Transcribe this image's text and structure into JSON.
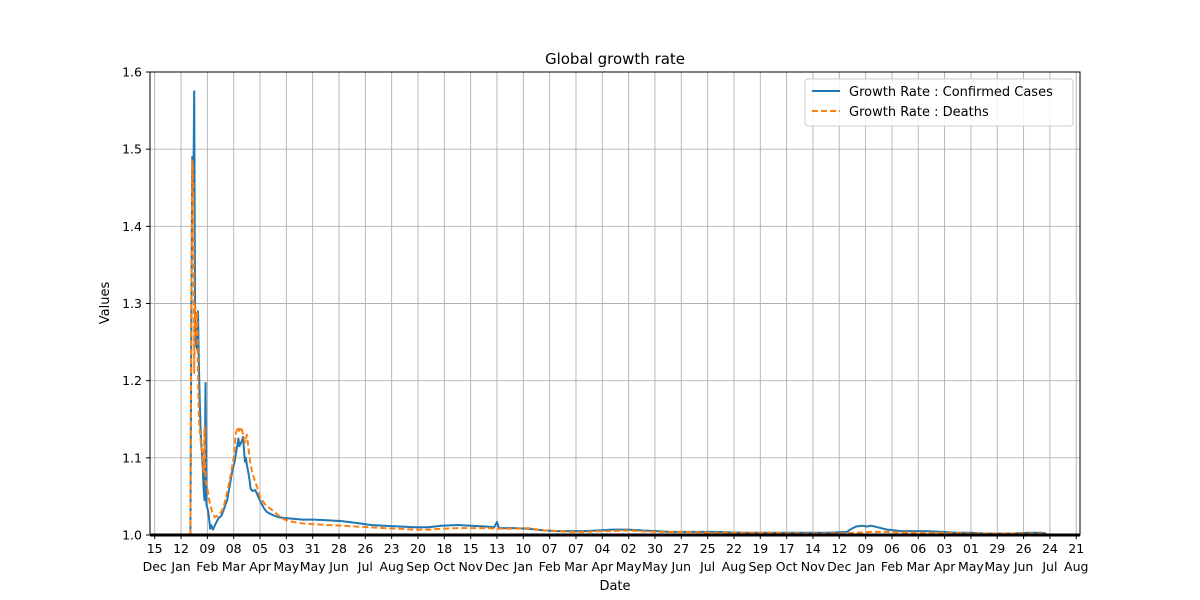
{
  "chart_data": {
    "type": "line",
    "title": "Global growth rate",
    "xlabel": "Date",
    "ylabel": "Values",
    "ylim": [
      1.0,
      1.6
    ],
    "xlim": [
      "2019-12-10",
      "2022-08-25"
    ],
    "grid": true,
    "legend_position": "top-right",
    "yticks": [
      {
        "value": 1.0,
        "label": "1.0"
      },
      {
        "value": 1.1,
        "label": "1.1"
      },
      {
        "value": 1.2,
        "label": "1.2"
      },
      {
        "value": 1.3,
        "label": "1.3"
      },
      {
        "value": 1.4,
        "label": "1.4"
      },
      {
        "value": 1.5,
        "label": "1.5"
      },
      {
        "value": 1.6,
        "label": "1.6"
      }
    ],
    "xticks": [
      {
        "date": "2019-12-15",
        "day": "15",
        "month": "Dec"
      },
      {
        "date": "2020-01-12",
        "day": "12",
        "month": "Jan"
      },
      {
        "date": "2020-02-09",
        "day": "09",
        "month": "Feb"
      },
      {
        "date": "2020-03-08",
        "day": "08",
        "month": "Mar"
      },
      {
        "date": "2020-04-05",
        "day": "05",
        "month": "Apr"
      },
      {
        "date": "2020-05-03",
        "day": "03",
        "month": "May"
      },
      {
        "date": "2020-05-31",
        "day": "31",
        "month": "May"
      },
      {
        "date": "2020-06-28",
        "day": "28",
        "month": "Jun"
      },
      {
        "date": "2020-07-26",
        "day": "26",
        "month": "Jul"
      },
      {
        "date": "2020-08-23",
        "day": "23",
        "month": "Aug"
      },
      {
        "date": "2020-09-20",
        "day": "20",
        "month": "Sep"
      },
      {
        "date": "2020-10-18",
        "day": "18",
        "month": "Oct"
      },
      {
        "date": "2020-11-15",
        "day": "15",
        "month": "Nov"
      },
      {
        "date": "2020-12-13",
        "day": "13",
        "month": "Dec"
      },
      {
        "date": "2021-01-10",
        "day": "10",
        "month": "Jan"
      },
      {
        "date": "2021-02-07",
        "day": "07",
        "month": "Feb"
      },
      {
        "date": "2021-03-07",
        "day": "07",
        "month": "Mar"
      },
      {
        "date": "2021-04-04",
        "day": "04",
        "month": "Apr"
      },
      {
        "date": "2021-05-02",
        "day": "02",
        "month": "May"
      },
      {
        "date": "2021-05-30",
        "day": "30",
        "month": "May"
      },
      {
        "date": "2021-06-27",
        "day": "27",
        "month": "Jun"
      },
      {
        "date": "2021-07-25",
        "day": "25",
        "month": "Jul"
      },
      {
        "date": "2021-08-22",
        "day": "22",
        "month": "Aug"
      },
      {
        "date": "2021-09-19",
        "day": "19",
        "month": "Sep"
      },
      {
        "date": "2021-10-17",
        "day": "17",
        "month": "Oct"
      },
      {
        "date": "2021-11-14",
        "day": "14",
        "month": "Nov"
      },
      {
        "date": "2021-12-12",
        "day": "12",
        "month": "Dec"
      },
      {
        "date": "2022-01-09",
        "day": "09",
        "month": "Jan"
      },
      {
        "date": "2022-02-06",
        "day": "06",
        "month": "Feb"
      },
      {
        "date": "2022-03-06",
        "day": "06",
        "month": "Mar"
      },
      {
        "date": "2022-04-03",
        "day": "03",
        "month": "Apr"
      },
      {
        "date": "2022-05-01",
        "day": "01",
        "month": "May"
      },
      {
        "date": "2022-05-29",
        "day": "29",
        "month": "May"
      },
      {
        "date": "2022-06-26",
        "day": "26",
        "month": "Jun"
      },
      {
        "date": "2022-07-24",
        "day": "24",
        "month": "Jul"
      },
      {
        "date": "2022-08-21",
        "day": "21",
        "month": "Aug"
      }
    ],
    "baseline": {
      "from": "2019-12-10",
      "to": "2022-08-25",
      "value": 1.0
    },
    "series": [
      {
        "name": "Growth Rate : Confirmed Cases",
        "color": "#1f77b4",
        "style": "solid",
        "points": [
          [
            "2020-01-22",
            1.0
          ],
          [
            "2020-01-23",
            1.3
          ],
          [
            "2020-01-24",
            1.49
          ],
          [
            "2020-01-25",
            1.44
          ],
          [
            "2020-01-26",
            1.575
          ],
          [
            "2020-01-27",
            1.28
          ],
          [
            "2020-01-28",
            1.25
          ],
          [
            "2020-01-29",
            1.24
          ],
          [
            "2020-01-30",
            1.29
          ],
          [
            "2020-01-31",
            1.22
          ],
          [
            "2020-02-01",
            1.17
          ],
          [
            "2020-02-02",
            1.13
          ],
          [
            "2020-02-03",
            1.11
          ],
          [
            "2020-02-04",
            1.09
          ],
          [
            "2020-02-05",
            1.06
          ],
          [
            "2020-02-06",
            1.045
          ],
          [
            "2020-02-07",
            1.197
          ],
          [
            "2020-02-08",
            1.04
          ],
          [
            "2020-02-10",
            1.03
          ],
          [
            "2020-02-12",
            1.008
          ],
          [
            "2020-02-13",
            1.013
          ],
          [
            "2020-02-15",
            1.007
          ],
          [
            "2020-02-18",
            1.015
          ],
          [
            "2020-02-21",
            1.022
          ],
          [
            "2020-02-24",
            1.025
          ],
          [
            "2020-02-27",
            1.035
          ],
          [
            "2020-03-01",
            1.045
          ],
          [
            "2020-03-04",
            1.065
          ],
          [
            "2020-03-06",
            1.08
          ],
          [
            "2020-03-09",
            1.095
          ],
          [
            "2020-03-11",
            1.11
          ],
          [
            "2020-03-13",
            1.125
          ],
          [
            "2020-03-14",
            1.115
          ],
          [
            "2020-03-16",
            1.12
          ],
          [
            "2020-03-18",
            1.127
          ],
          [
            "2020-03-19",
            1.11
          ],
          [
            "2020-03-20",
            1.095
          ],
          [
            "2020-03-21",
            1.1
          ],
          [
            "2020-03-22",
            1.09
          ],
          [
            "2020-03-23",
            1.085
          ],
          [
            "2020-03-25",
            1.07
          ],
          [
            "2020-03-26",
            1.06
          ],
          [
            "2020-03-28",
            1.057
          ],
          [
            "2020-03-31",
            1.058
          ],
          [
            "2020-04-03",
            1.05
          ],
          [
            "2020-04-06",
            1.042
          ],
          [
            "2020-04-09",
            1.035
          ],
          [
            "2020-04-12",
            1.03
          ],
          [
            "2020-04-15",
            1.028
          ],
          [
            "2020-04-20",
            1.025
          ],
          [
            "2020-04-25",
            1.023
          ],
          [
            "2020-05-01",
            1.022
          ],
          [
            "2020-05-10",
            1.021
          ],
          [
            "2020-05-20",
            1.02
          ],
          [
            "2020-06-01",
            1.02
          ],
          [
            "2020-06-15",
            1.019
          ],
          [
            "2020-07-01",
            1.018
          ],
          [
            "2020-07-15",
            1.016
          ],
          [
            "2020-08-01",
            1.013
          ],
          [
            "2020-08-15",
            1.012
          ],
          [
            "2020-09-01",
            1.011
          ],
          [
            "2020-09-15",
            1.01
          ],
          [
            "2020-10-01",
            1.01
          ],
          [
            "2020-10-15",
            1.012
          ],
          [
            "2020-11-01",
            1.013
          ],
          [
            "2020-11-15",
            1.012
          ],
          [
            "2020-12-01",
            1.011
          ],
          [
            "2020-12-10",
            1.01
          ],
          [
            "2020-12-13",
            1.017
          ],
          [
            "2020-12-15",
            1.009
          ],
          [
            "2021-01-01",
            1.009
          ],
          [
            "2021-01-15",
            1.008
          ],
          [
            "2021-02-01",
            1.006
          ],
          [
            "2021-02-15",
            1.005
          ],
          [
            "2021-03-01",
            1.005
          ],
          [
            "2021-03-15",
            1.005
          ],
          [
            "2021-04-01",
            1.006
          ],
          [
            "2021-04-15",
            1.007
          ],
          [
            "2021-05-01",
            1.007
          ],
          [
            "2021-05-15",
            1.006
          ],
          [
            "2021-06-01",
            1.005
          ],
          [
            "2021-06-15",
            1.004
          ],
          [
            "2021-07-01",
            1.004
          ],
          [
            "2021-08-01",
            1.004
          ],
          [
            "2021-09-01",
            1.003
          ],
          [
            "2021-10-01",
            1.003
          ],
          [
            "2021-11-01",
            1.003
          ],
          [
            "2021-12-01",
            1.003
          ],
          [
            "2021-12-20",
            1.004
          ],
          [
            "2021-12-25",
            1.008
          ],
          [
            "2021-12-30",
            1.011
          ],
          [
            "2022-01-05",
            1.012
          ],
          [
            "2022-01-10",
            1.011
          ],
          [
            "2022-01-15",
            1.012
          ],
          [
            "2022-01-22",
            1.01
          ],
          [
            "2022-02-01",
            1.007
          ],
          [
            "2022-02-15",
            1.005
          ],
          [
            "2022-03-01",
            1.005
          ],
          [
            "2022-03-15",
            1.005
          ],
          [
            "2022-04-01",
            1.004
          ],
          [
            "2022-04-15",
            1.003
          ],
          [
            "2022-05-01",
            1.003
          ],
          [
            "2022-05-15",
            1.002
          ],
          [
            "2022-06-01",
            1.002
          ],
          [
            "2022-06-15",
            1.002
          ],
          [
            "2022-07-01",
            1.003
          ],
          [
            "2022-07-15",
            1.003
          ],
          [
            "2022-07-20",
            1.002
          ]
        ]
      },
      {
        "name": "Growth Rate : Deaths",
        "color": "#ff7f0e",
        "style": "dashed",
        "points": [
          [
            "2020-01-22",
            1.0
          ],
          [
            "2020-01-23",
            1.32
          ],
          [
            "2020-01-24",
            1.485
          ],
          [
            "2020-01-25",
            1.46
          ],
          [
            "2020-01-26",
            1.21
          ],
          [
            "2020-01-27",
            1.3
          ],
          [
            "2020-01-28",
            1.26
          ],
          [
            "2020-01-29",
            1.29
          ],
          [
            "2020-01-30",
            1.21
          ],
          [
            "2020-01-31",
            1.15
          ],
          [
            "2020-02-02",
            1.12
          ],
          [
            "2020-02-04",
            1.1
          ],
          [
            "2020-02-05",
            1.08
          ],
          [
            "2020-02-06",
            1.14
          ],
          [
            "2020-02-07",
            1.07
          ],
          [
            "2020-02-09",
            1.06
          ],
          [
            "2020-02-11",
            1.045
          ],
          [
            "2020-02-14",
            1.03
          ],
          [
            "2020-02-17",
            1.023
          ],
          [
            "2020-02-20",
            1.025
          ],
          [
            "2020-02-24",
            1.03
          ],
          [
            "2020-02-27",
            1.04
          ],
          [
            "2020-03-02",
            1.06
          ],
          [
            "2020-03-05",
            1.08
          ],
          [
            "2020-03-08",
            1.1
          ],
          [
            "2020-03-10",
            1.13
          ],
          [
            "2020-03-12",
            1.14
          ],
          [
            "2020-03-14",
            1.135
          ],
          [
            "2020-03-16",
            1.14
          ],
          [
            "2020-03-18",
            1.13
          ],
          [
            "2020-03-20",
            1.12
          ],
          [
            "2020-03-22",
            1.13
          ],
          [
            "2020-03-24",
            1.11
          ],
          [
            "2020-03-26",
            1.09
          ],
          [
            "2020-03-28",
            1.08
          ],
          [
            "2020-04-01",
            1.065
          ],
          [
            "2020-04-05",
            1.05
          ],
          [
            "2020-04-10",
            1.04
          ],
          [
            "2020-04-15",
            1.035
          ],
          [
            "2020-04-20",
            1.03
          ],
          [
            "2020-04-25",
            1.025
          ],
          [
            "2020-05-01",
            1.02
          ],
          [
            "2020-05-10",
            1.017
          ],
          [
            "2020-05-20",
            1.015
          ],
          [
            "2020-06-01",
            1.014
          ],
          [
            "2020-06-15",
            1.013
          ],
          [
            "2020-07-01",
            1.012
          ],
          [
            "2020-07-15",
            1.011
          ],
          [
            "2020-08-01",
            1.01
          ],
          [
            "2020-08-15",
            1.009
          ],
          [
            "2020-09-01",
            1.008
          ],
          [
            "2020-09-15",
            1.007
          ],
          [
            "2020-10-01",
            1.007
          ],
          [
            "2020-10-15",
            1.008
          ],
          [
            "2020-11-01",
            1.009
          ],
          [
            "2020-11-15",
            1.009
          ],
          [
            "2020-12-01",
            1.009
          ],
          [
            "2020-12-15",
            1.008
          ],
          [
            "2021-01-01",
            1.008
          ],
          [
            "2021-01-15",
            1.009
          ],
          [
            "2021-02-01",
            1.006
          ],
          [
            "2021-02-15",
            1.005
          ],
          [
            "2021-03-01",
            1.004
          ],
          [
            "2021-03-15",
            1.004
          ],
          [
            "2021-04-01",
            1.005
          ],
          [
            "2021-04-15",
            1.005
          ],
          [
            "2021-05-01",
            1.006
          ],
          [
            "2021-05-15",
            1.005
          ],
          [
            "2021-06-01",
            1.004
          ],
          [
            "2021-07-01",
            1.004
          ],
          [
            "2021-08-01",
            1.003
          ],
          [
            "2021-09-01",
            1.003
          ],
          [
            "2021-10-01",
            1.003
          ],
          [
            "2021-11-01",
            1.002
          ],
          [
            "2021-12-01",
            1.002
          ],
          [
            "2022-01-01",
            1.003
          ],
          [
            "2022-01-15",
            1.004
          ],
          [
            "2022-02-01",
            1.004
          ],
          [
            "2022-03-01",
            1.003
          ],
          [
            "2022-04-01",
            1.003
          ],
          [
            "2022-05-01",
            1.002
          ],
          [
            "2022-06-01",
            1.002
          ],
          [
            "2022-07-01",
            1.002
          ],
          [
            "2022-07-20",
            1.002
          ]
        ]
      }
    ]
  }
}
